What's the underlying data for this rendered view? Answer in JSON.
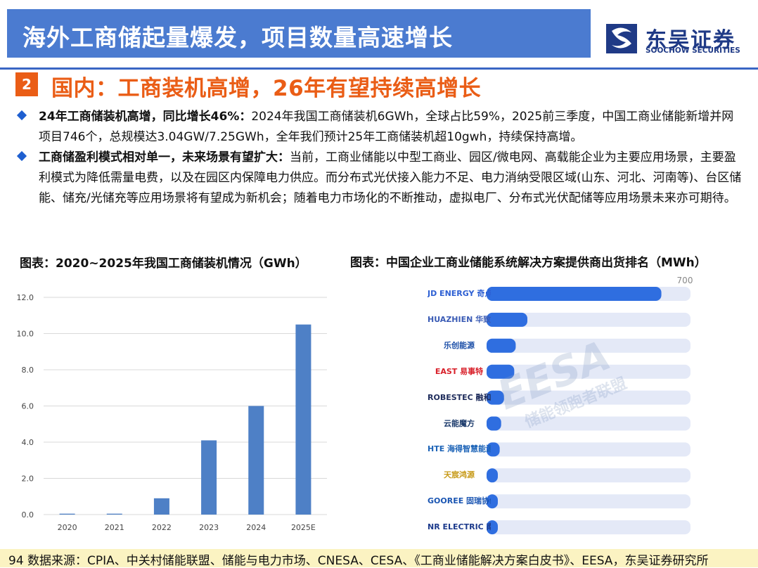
{
  "header": {
    "title": "海外工商储起量爆发，项目数量高速增长",
    "logo_cn": "东吴证券",
    "logo_en": "SOOCHOW SECURITIES",
    "logo_icon": "soochow-logo-icon"
  },
  "section": {
    "number": "2",
    "title": "国内：工商装机高增，26年有望持续高增长"
  },
  "bullets": [
    {
      "lead": "24年工商储装机高增，同比增长46%：",
      "body": "2024年我国工商储装机6GWh，全球占比59%，2025前三季度，中国工商业储能新增并网项目746个，总规模达3.04GW/7.25GWh，全年我们预计25年工商储装机超10gwh，持续保持高增。"
    },
    {
      "lead": "工商储盈利模式相对单一，未来场景有望扩大：",
      "body": "当前，工商业储能以中型工商业、园区/微电网、高载能企业为主要应用场景，主要盈利模式为降低需量电费，以及在园区内保障电力供应。而分布式光伏接入能力不足、电力消纳受限区域(山东、河北、河南等)、台区储能、储充/光储充等应用场景将有望成为新机会；随着电力市场化的不断推动，虚拟电厂、分布式光伏配储等应用场景未来亦可期待。"
    }
  ],
  "chart_left_title": "图表：2020~2025年我国工商储装机情况（GWh）",
  "chart_right_title": "图表：中国企业工商业储能系统解决方案提供商出货排名（MWh）",
  "chart_data": [
    {
      "type": "bar",
      "categories": [
        "2020",
        "2021",
        "2022",
        "2023",
        "2024",
        "2025E"
      ],
      "values": [
        0.05,
        0.05,
        0.9,
        4.1,
        6.0,
        10.5
      ],
      "ylim": [
        0,
        12
      ],
      "yticks": [
        "0.0",
        "2.0",
        "4.0",
        "6.0",
        "8.0",
        "10.0",
        "12.0"
      ],
      "grid": true,
      "color": "#4e80c6"
    },
    {
      "type": "bar",
      "orientation": "horizontal",
      "max_label": "700",
      "xlim": [
        0,
        700
      ],
      "categories": [
        "JD ENERGY 奇点能源",
        "HUAZHIEN 华致能源",
        "乐创能源",
        "EAST 易事特",
        "ROBESTEC 融和元储",
        "云能魔方",
        "HTE 海得智慧能源",
        "天宸鸿源",
        "GOOREE 固瑞协创",
        "NR ELECTRIC 南瑞继保"
      ],
      "values": [
        600,
        140,
        100,
        95,
        60,
        50,
        45,
        38,
        34,
        30
      ],
      "color": "#2f6ee0",
      "track_color": "#e4e9f7"
    }
  ],
  "watermark": {
    "en": "EESA",
    "cn": "储能领跑者联盟"
  },
  "footer": {
    "page": "94",
    "source": "数据来源：CPIA、中关村储能联盟、储能与电力市场、CNESA、CESA、《工商业储能解决方案白皮书》、EESA，东吴证券研究所"
  }
}
